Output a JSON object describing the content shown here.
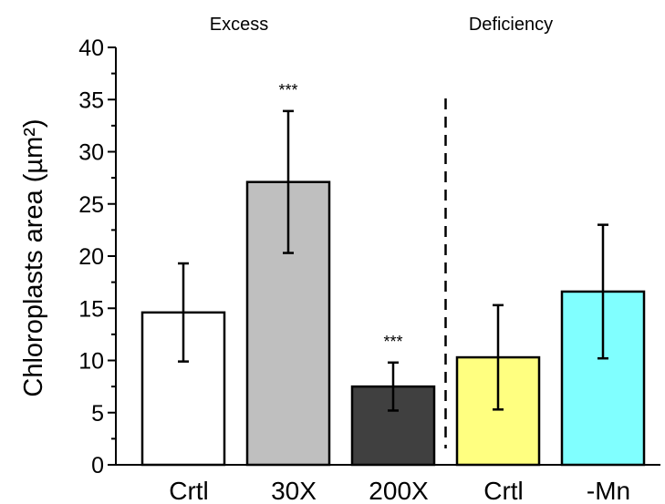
{
  "chart_data": {
    "type": "bar",
    "categories": [
      "Crtl",
      "30X",
      "200X",
      "Crtl",
      "-Mn"
    ],
    "values": [
      14.6,
      27.1,
      7.5,
      10.3,
      16.6
    ],
    "errors": [
      4.7,
      6.8,
      2.3,
      5.0,
      6.4
    ],
    "colors": [
      "#ffffff",
      "#bfbfbf",
      "#404040",
      "#ffff80",
      "#80ffff"
    ],
    "annotations": [
      "",
      "***",
      "***",
      "",
      ""
    ],
    "groups": [
      {
        "label": "Excess",
        "categories": [
          0,
          1,
          2
        ]
      },
      {
        "label": "Deficiency",
        "categories": [
          3,
          4
        ]
      }
    ],
    "divider_after_category": 2,
    "title": "",
    "xlabel": "",
    "ylabel": "Chloroplasts area (µm²)",
    "ylim": [
      0,
      40
    ],
    "yticks": [
      0,
      5,
      10,
      15,
      20,
      25,
      30,
      35,
      40
    ],
    "grid": false
  }
}
